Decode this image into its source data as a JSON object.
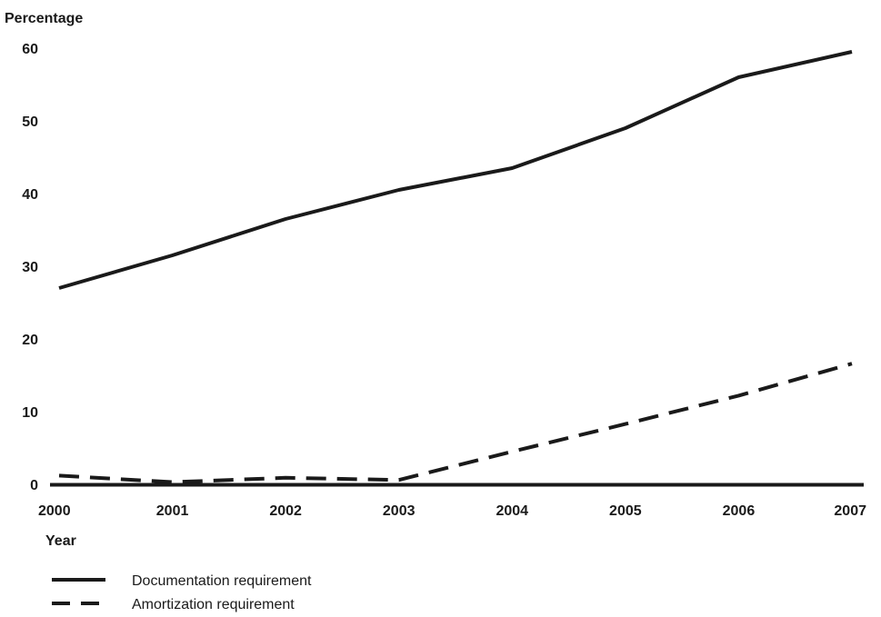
{
  "chart_data": {
    "type": "line",
    "ylabel": "Percentage",
    "xlabel": "Year",
    "x": [
      "2000",
      "2001",
      "2002",
      "2003",
      "2004",
      "2005",
      "2006",
      "2007"
    ],
    "ylim": [
      0,
      60
    ],
    "yticks": [
      0,
      10,
      20,
      30,
      40,
      50,
      60
    ],
    "grid": false,
    "legend_position": "bottom-left",
    "series": [
      {
        "name": "Documentation requirement",
        "style": "solid",
        "values": [
          27.0,
          31.5,
          36.5,
          40.5,
          43.5,
          49.0,
          56.0,
          59.5
        ]
      },
      {
        "name": "Amortization requirement",
        "style": "dashed",
        "values": [
          1.2,
          0.3,
          0.9,
          0.6,
          4.5,
          8.3,
          12.2,
          16.6
        ]
      }
    ],
    "line_color": "#1a1a1a"
  }
}
